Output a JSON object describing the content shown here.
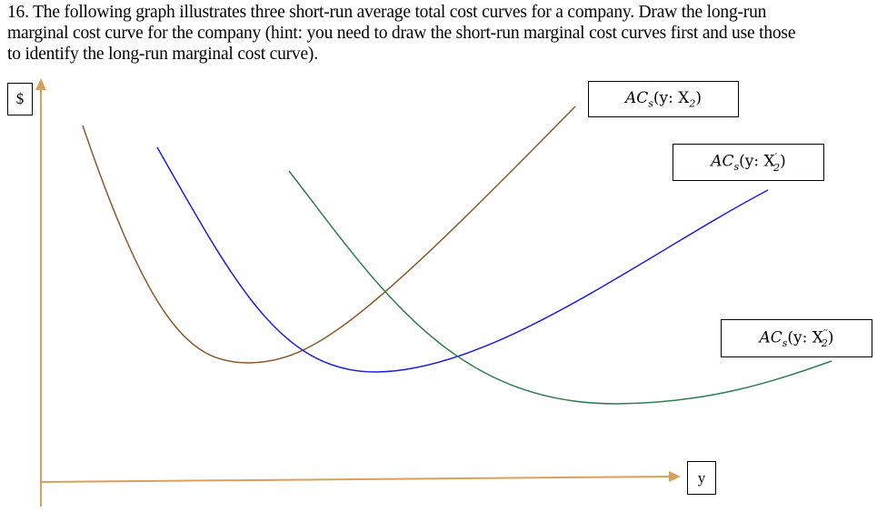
{
  "question": {
    "line1": "16. The following graph illustrates three short-run average total cost curves for a company. Draw the long-run",
    "line2": "marginal cost curve for the company (hint: you need to draw the short-run marginal cost curves first and use those",
    "line3": "to identify the long-run marginal cost curve)."
  },
  "axes": {
    "y_label": "$",
    "x_label": "y",
    "color": "#D9A05B"
  },
  "curves": [
    {
      "id": "ac-x2",
      "color": "#8B5A2B",
      "label": {
        "main": "AC",
        "sub": "s",
        "open": "(y: X",
        "prime": "",
        "sub2": "2",
        "close": ")"
      }
    },
    {
      "id": "ac-x2-prime",
      "color": "#1F1FE0",
      "label": {
        "main": "AC",
        "sub": "s",
        "open": "(y: X",
        "prime": "′",
        "sub2": "2",
        "close": ")"
      }
    },
    {
      "id": "ac-x2-double-prime",
      "color": "#2E7D4F",
      "label": {
        "main": "AC",
        "sub": "s",
        "open": "(y: X",
        "prime": "′′",
        "sub2": "2",
        "close": ")"
      }
    }
  ]
}
